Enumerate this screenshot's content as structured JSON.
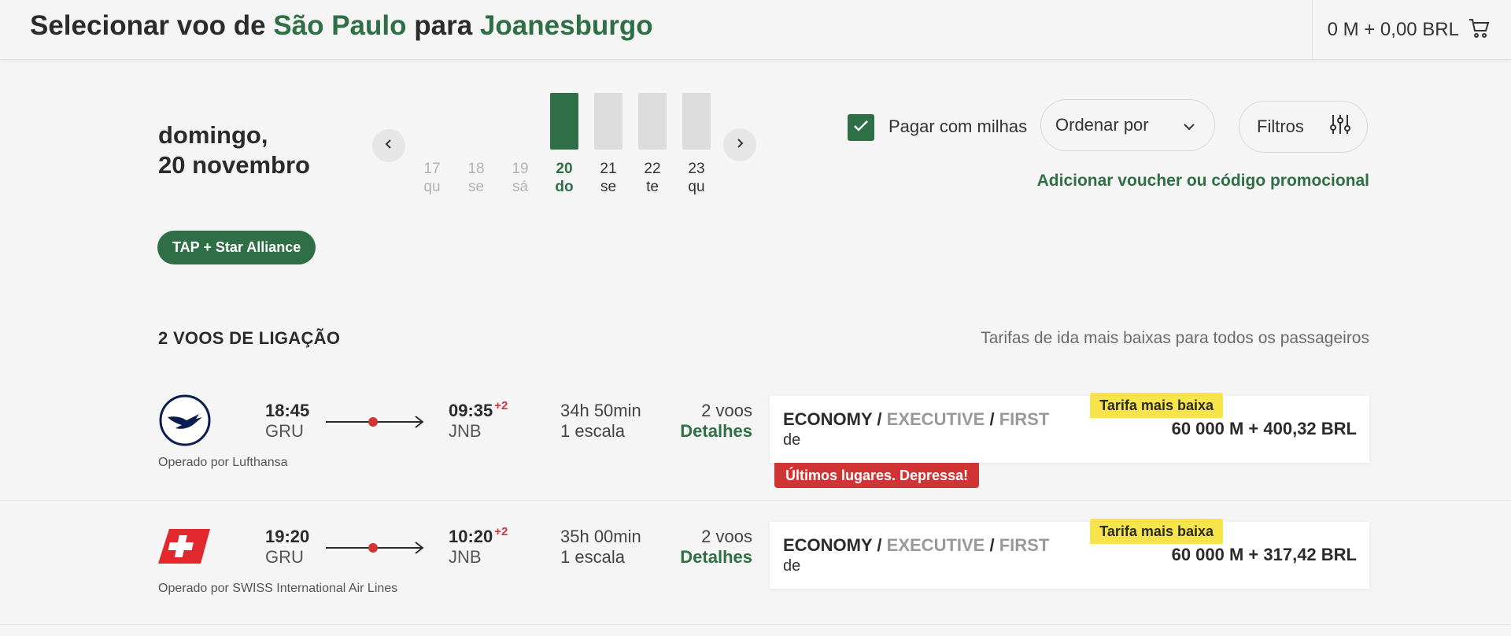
{
  "header": {
    "title_prefix": "Selecionar voo de",
    "origin": "São Paulo",
    "connector": "para",
    "destination": "Joanesburgo",
    "cart_total": "0 M + 0,00 BRL"
  },
  "date_heading": {
    "line1": "domingo,",
    "line2": "20 novembro"
  },
  "date_strip": [
    {
      "num": "17",
      "wd": "qu",
      "state": "past"
    },
    {
      "num": "18",
      "wd": "se",
      "state": "past"
    },
    {
      "num": "19",
      "wd": "sá",
      "state": "past"
    },
    {
      "num": "20",
      "wd": "do",
      "state": "active"
    },
    {
      "num": "21",
      "wd": "se",
      "state": "future"
    },
    {
      "num": "22",
      "wd": "te",
      "state": "future"
    },
    {
      "num": "23",
      "wd": "qu",
      "state": "future"
    }
  ],
  "controls": {
    "pay_with_miles_label": "Pagar com milhas",
    "pay_with_miles_checked": true,
    "sort_label": "Ordenar por",
    "filters_label": "Filtros",
    "voucher_link": "Adicionar voucher ou código promocional"
  },
  "alliance_badge": "TAP + Star Alliance",
  "section": {
    "title": "2 VOOS DE LIGAÇÃO",
    "note": "Tarifas de ida mais baixas para todos os passageiros"
  },
  "flights": [
    {
      "airline_icon": "lufthansa-logo-icon",
      "operated_by": "Operado por Lufthansa",
      "dep_time": "18:45",
      "dep_code": "GRU",
      "arr_time": "09:35",
      "arr_code": "JNB",
      "day_offset": "+2",
      "duration": "34h 50min",
      "stops": "1 escala",
      "voos_count": "2 voos",
      "details_label": "Detalhes",
      "class_economy": "ECONOMY",
      "class_executive": "EXECUTIVE",
      "class_first": "FIRST",
      "separator": "/",
      "from_label": "de",
      "price": "60 000 M + 400,32 BRL",
      "lowest_badge": "Tarifa mais baixa",
      "alert": "Últimos lugares. Depressa!"
    },
    {
      "airline_icon": "swiss-logo-icon",
      "operated_by": "Operado por SWISS International Air Lines",
      "dep_time": "19:20",
      "dep_code": "GRU",
      "arr_time": "10:20",
      "arr_code": "JNB",
      "day_offset": "+2",
      "duration": "35h 00min",
      "stops": "1 escala",
      "voos_count": "2 voos",
      "details_label": "Detalhes",
      "class_economy": "ECONOMY",
      "class_executive": "EXECUTIVE",
      "class_first": "FIRST",
      "separator": "/",
      "from_label": "de",
      "price": "60 000 M + 317,42 BRL",
      "lowest_badge": "Tarifa mais baixa"
    }
  ],
  "colors": {
    "brand_green": "#2f6f45",
    "alert_red": "#d13434",
    "badge_yellow": "#f6e44a"
  }
}
